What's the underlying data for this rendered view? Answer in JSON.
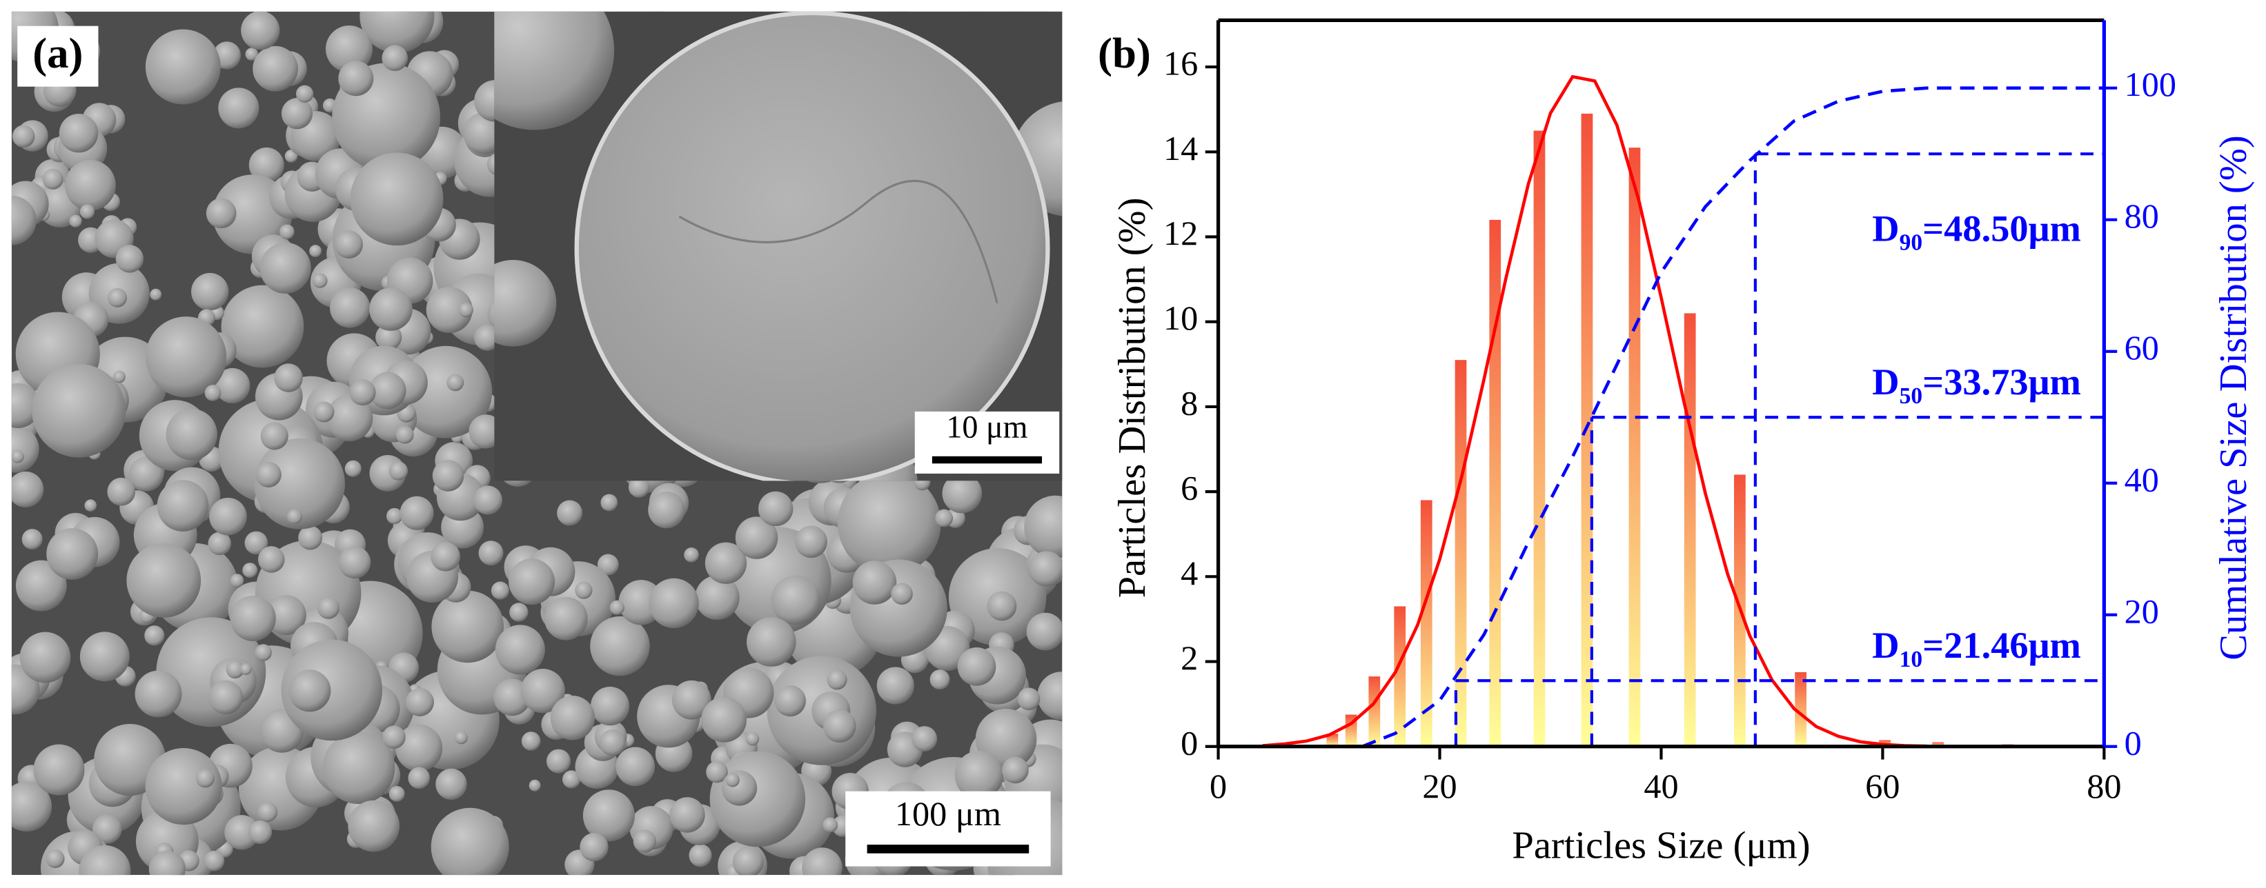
{
  "image": {
    "label": "(a)",
    "scale_bar": "100 μm",
    "inset_scale_bar": "10 μm"
  },
  "chart_data": {
    "type": "bar",
    "panel_label": "(b)",
    "xlabel": "Particles Size (μm)",
    "ylabel": "Particles Distribution (%)",
    "y2label": "Cumulative Size Distribution (%)",
    "x": [
      10.3,
      12,
      14.1,
      16.4,
      18.8,
      21.9,
      25,
      29,
      33.3,
      37.6,
      42.6,
      47.1,
      52.6,
      60.2,
      65,
      71.3
    ],
    "values": [
      0.3,
      0.75,
      1.65,
      3.3,
      5.8,
      9.1,
      12.4,
      14.5,
      14.9,
      14.1,
      10.2,
      6.4,
      1.75,
      0.15,
      0.1,
      0.05
    ],
    "bar_colors": [
      "#f4503a",
      "#ffff99"
    ],
    "fit": {
      "color": "#ff0000",
      "x": [
        4,
        6,
        8,
        10,
        12,
        14,
        16,
        18,
        20,
        22,
        24,
        26,
        28,
        30,
        32,
        34,
        36,
        38,
        40,
        42,
        44,
        46,
        48,
        50,
        52,
        54,
        56,
        58,
        60,
        62,
        64
      ],
      "values": [
        0.02,
        0.06,
        0.13,
        0.27,
        0.54,
        1.0,
        1.75,
        2.86,
        4.41,
        6.37,
        8.65,
        11.05,
        13.24,
        14.91,
        15.77,
        15.67,
        14.63,
        12.84,
        10.57,
        8.18,
        5.95,
        4.06,
        2.61,
        1.57,
        0.89,
        0.47,
        0.24,
        0.11,
        0.05,
        0.02,
        0.01
      ]
    },
    "cumulative": {
      "color": "#0000ff",
      "axis": "y2",
      "x": [
        13,
        16,
        20,
        24,
        28,
        32,
        36,
        40,
        44,
        48,
        52,
        56,
        60,
        64,
        72,
        80
      ],
      "values": [
        0,
        2,
        7,
        17,
        31,
        44,
        58,
        72,
        82,
        89,
        95,
        98,
        99.5,
        100,
        100,
        100
      ]
    },
    "annotations": [
      {
        "x": 21.46,
        "y": 10,
        "label": "D",
        "subscript": "10",
        "text": "=21.46μm"
      },
      {
        "x": 33.73,
        "y": 50,
        "label": "D",
        "subscript": "50",
        "text": "=33.73μm"
      },
      {
        "x": 48.5,
        "y": 90,
        "label": "D",
        "subscript": "90",
        "text": "=48.50μm"
      }
    ],
    "xlim": [
      0,
      80
    ],
    "xticks": [
      0,
      20,
      40,
      60,
      80
    ],
    "ylim": [
      0,
      17.1
    ],
    "yticks": [
      0,
      2,
      4,
      6,
      8,
      10,
      12,
      14,
      16
    ],
    "y2lim": [
      0,
      110.3
    ],
    "y2ticks": [
      0,
      20,
      40,
      60,
      80,
      100
    ]
  }
}
